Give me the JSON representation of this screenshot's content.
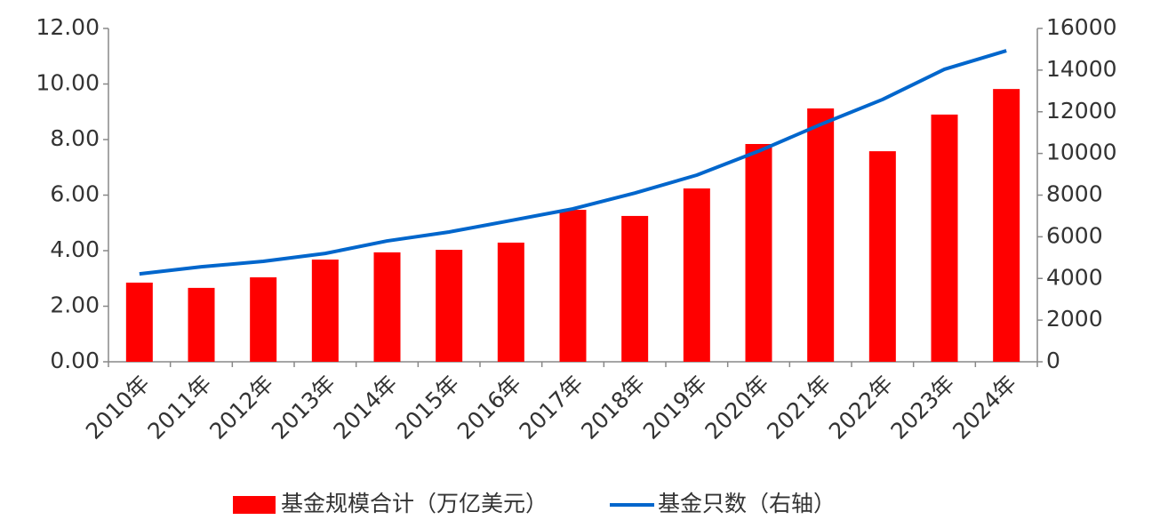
{
  "chart_data": {
    "type": "bar",
    "categories": [
      "2010年",
      "2011年",
      "2012年",
      "2013年",
      "2014年",
      "2015年",
      "2016年",
      "2017年",
      "2018年",
      "2019年",
      "2020年",
      "2021年",
      "2022年",
      "2023年",
      "2024年"
    ],
    "series": [
      {
        "name": "基金规模合计（万亿美元）",
        "type": "bar",
        "color": "#ff0000",
        "values": [
          2.85,
          2.66,
          3.04,
          3.68,
          3.94,
          4.03,
          4.29,
          5.47,
          5.25,
          6.24,
          7.84,
          9.12,
          7.58,
          8.9,
          9.82
        ]
      },
      {
        "name": "基金只数（右轴）",
        "type": "line",
        "axis": "y2",
        "color": "#0066cc",
        "values": [
          4220,
          4560,
          4820,
          5200,
          5800,
          6230,
          6780,
          7340,
          8100,
          8960,
          10110,
          11390,
          12590,
          14040,
          14930
        ]
      }
    ],
    "ylim": [
      0,
      12
    ],
    "yticks": [
      {
        "value": 0,
        "label": "0.00"
      },
      {
        "value": 2,
        "label": "2.00"
      },
      {
        "value": 4,
        "label": "4.00"
      },
      {
        "value": 6,
        "label": "6.00"
      },
      {
        "value": 8,
        "label": "8.00"
      },
      {
        "value": 10,
        "label": "10.00"
      },
      {
        "value": 12,
        "label": "12.00"
      }
    ],
    "y2lim": [
      0,
      16000
    ],
    "y2ticks": [
      0,
      2000,
      4000,
      6000,
      8000,
      10000,
      12000,
      14000,
      16000
    ],
    "grid": false,
    "legend": "bottom"
  }
}
